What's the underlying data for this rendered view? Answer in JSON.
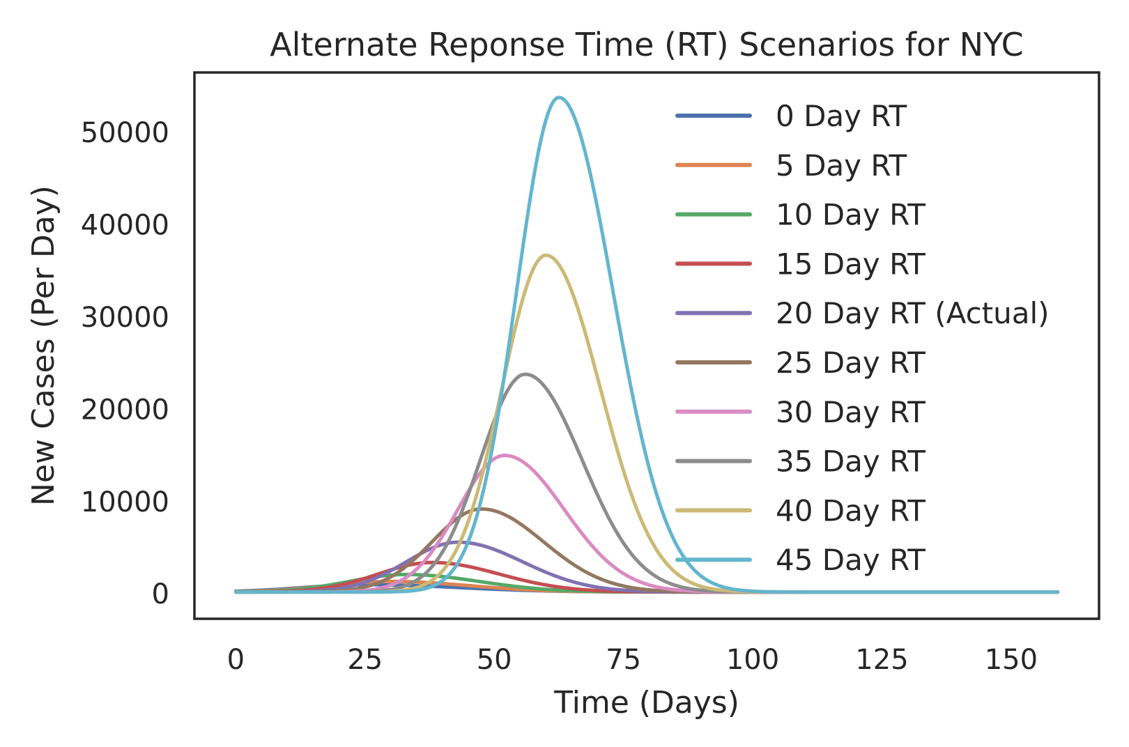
{
  "chart_data": {
    "type": "line",
    "title": "Alternate Reponse Time (RT) Scenarios for NYC",
    "xlabel": "Time (Days)",
    "ylabel": "New Cases (Per Day)",
    "xlim": [
      -8,
      167
    ],
    "ylim": [
      -2700,
      56500
    ],
    "xticks": [
      0,
      25,
      50,
      75,
      100,
      125,
      150
    ],
    "yticks": [
      0,
      10000,
      20000,
      30000,
      40000,
      50000
    ],
    "grid": false,
    "legend_position": "upper-right",
    "x_range": [
      0,
      159
    ],
    "series": [
      {
        "name": "0 Day RT",
        "color": "#4c72b0",
        "model": {
          "baseline": 200,
          "peak": 800,
          "mu": 25,
          "sigma_left": 12,
          "sigma_right": 18
        }
      },
      {
        "name": "5 Day RT",
        "color": "#dd8452",
        "model": {
          "baseline": 200,
          "peak": 1150,
          "mu": 30,
          "sigma_left": 12,
          "sigma_right": 15
        }
      },
      {
        "name": "10 Day RT",
        "color": "#55a868",
        "model": {
          "baseline": 200,
          "peak": 1900,
          "mu": 33,
          "sigma_left": 11,
          "sigma_right": 14
        }
      },
      {
        "name": "15 Day RT",
        "color": "#c44e52",
        "model": {
          "baseline": 200,
          "peak": 3200,
          "mu": 38,
          "sigma_left": 10.5,
          "sigma_right": 13
        }
      },
      {
        "name": "20 Day RT (Actual)",
        "color": "#8172b3",
        "model": {
          "baseline": 200,
          "peak": 5400,
          "mu": 43,
          "sigma_left": 10,
          "sigma_right": 12.5
        }
      },
      {
        "name": "25 Day RT",
        "color": "#937860",
        "model": {
          "baseline": 200,
          "peak": 9000,
          "mu": 47.5,
          "sigma_left": 9.5,
          "sigma_right": 12
        }
      },
      {
        "name": "30 Day RT",
        "color": "#da8bc3",
        "model": {
          "baseline": 200,
          "peak": 14800,
          "mu": 52,
          "sigma_left": 9,
          "sigma_right": 11.5
        }
      },
      {
        "name": "35 Day RT",
        "color": "#8c8c8c",
        "model": {
          "baseline": 200,
          "peak": 23600,
          "mu": 56,
          "sigma_left": 8.7,
          "sigma_right": 11
        }
      },
      {
        "name": "40 Day RT",
        "color": "#ccb974",
        "model": {
          "baseline": 200,
          "peak": 36500,
          "mu": 60,
          "sigma_left": 8.5,
          "sigma_right": 10.5
        }
      },
      {
        "name": "45 Day RT",
        "color": "#64b5cd",
        "model": {
          "baseline": 200,
          "peak": 53600,
          "mu": 62.5,
          "sigma_left": 8.2,
          "sigma_right": 10.5
        }
      }
    ]
  }
}
